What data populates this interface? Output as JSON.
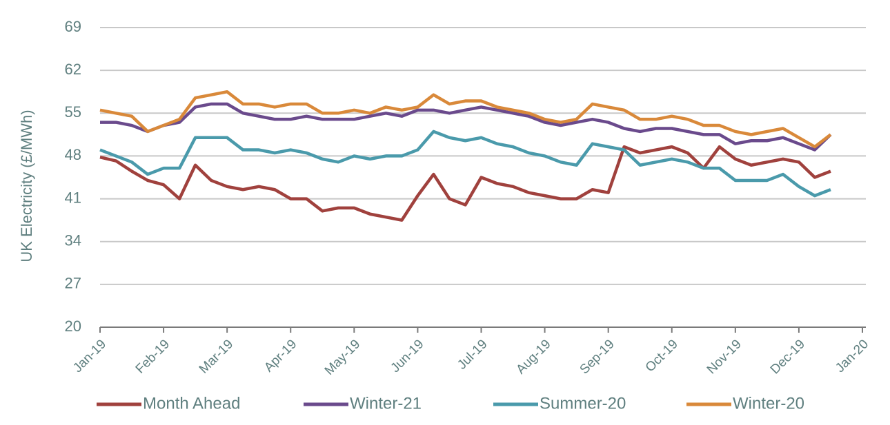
{
  "chart_data": {
    "type": "line",
    "ylabel": "UK Electricity (£/MWh)",
    "x": [
      0,
      0.25,
      0.5,
      0.75,
      1,
      1.25,
      1.5,
      1.75,
      2,
      2.25,
      2.5,
      2.75,
      3,
      3.25,
      3.5,
      3.75,
      4,
      4.25,
      4.5,
      4.75,
      5,
      5.25,
      5.5,
      5.75,
      6,
      6.25,
      6.5,
      6.75,
      7,
      7.25,
      7.5,
      7.75,
      8,
      8.25,
      8.5,
      8.75,
      9,
      9.25,
      9.5,
      9.75,
      10,
      10.25,
      10.5,
      10.75,
      11,
      11.25,
      11.5
    ],
    "series": [
      {
        "name": "Month Ahead",
        "color": "#a0413d",
        "values": [
          47.8,
          47.2,
          45.5,
          44,
          43.3,
          41,
          46.5,
          44,
          43,
          42.5,
          43,
          42.5,
          41,
          41,
          39,
          39.5,
          39.5,
          38.5,
          38,
          37.5,
          41.5,
          45,
          41,
          40,
          44.5,
          43.5,
          43,
          42,
          41.5,
          41,
          41,
          42.5,
          42,
          49.5,
          48.5,
          49,
          49.5,
          48.5,
          46,
          49.5,
          47.5,
          46.5,
          47,
          47.5,
          47,
          44.5,
          45.5
        ]
      },
      {
        "name": "Winter-21",
        "color": "#6a4a8c",
        "values": [
          53.5,
          53.5,
          53,
          52,
          53,
          53.5,
          56,
          56.5,
          56.5,
          55,
          54.5,
          54,
          54,
          54.5,
          54,
          54,
          54,
          54.5,
          55,
          54.5,
          55.5,
          55.5,
          55,
          55.5,
          56,
          55.5,
          55,
          54.5,
          53.5,
          53,
          53.5,
          54,
          53.5,
          52.5,
          52,
          52.5,
          52.5,
          52,
          51.5,
          51.5,
          50,
          50.5,
          50.5,
          51,
          50,
          49,
          51.5
        ]
      },
      {
        "name": "Summer-20",
        "color": "#4a9aab",
        "values": [
          49,
          48,
          47,
          45,
          46,
          46,
          51,
          51,
          51,
          49,
          49,
          48.5,
          49,
          48.5,
          47.5,
          47,
          48,
          47.5,
          48,
          48,
          49,
          52,
          51,
          50.5,
          51,
          50,
          49.5,
          48.5,
          48,
          47,
          46.5,
          50,
          49.5,
          49,
          46.5,
          47,
          47.5,
          47,
          46,
          46,
          44,
          44,
          44,
          45,
          43,
          41.5,
          42.5
        ]
      },
      {
        "name": "Winter-20",
        "color": "#d9893a",
        "values": [
          55.5,
          55,
          54.5,
          52,
          53,
          54,
          57.5,
          58,
          58.5,
          56.5,
          56.5,
          56,
          56.5,
          56.5,
          55,
          55,
          55.5,
          55,
          56,
          55.5,
          56,
          58,
          56.5,
          57,
          57,
          56,
          55.5,
          55,
          54,
          53.5,
          54,
          56.5,
          56,
          55.5,
          54,
          54,
          54.5,
          54,
          53,
          53,
          52,
          51.5,
          52,
          52.5,
          51,
          49.5,
          51.5
        ]
      }
    ],
    "xlim": [
      0,
      12
    ],
    "xticks": [
      {
        "value": 0,
        "label": "Jan-19"
      },
      {
        "value": 1,
        "label": "Feb-19"
      },
      {
        "value": 2,
        "label": "Mar-19"
      },
      {
        "value": 3,
        "label": "Apr-19"
      },
      {
        "value": 4,
        "label": "May-19"
      },
      {
        "value": 5,
        "label": "Jun-19"
      },
      {
        "value": 6,
        "label": "Jul-19"
      },
      {
        "value": 7,
        "label": "Aug-19"
      },
      {
        "value": 8,
        "label": "Sep-19"
      },
      {
        "value": 9,
        "label": "Oct-19"
      },
      {
        "value": 10,
        "label": "Nov-19"
      },
      {
        "value": 11,
        "label": "Dec-19"
      },
      {
        "value": 12,
        "label": "Jan-20"
      }
    ],
    "ylim": [
      20,
      69
    ],
    "yticks": [
      20,
      27,
      34,
      41,
      48,
      55,
      62,
      69
    ],
    "grid": true,
    "legend": "bottom"
  }
}
